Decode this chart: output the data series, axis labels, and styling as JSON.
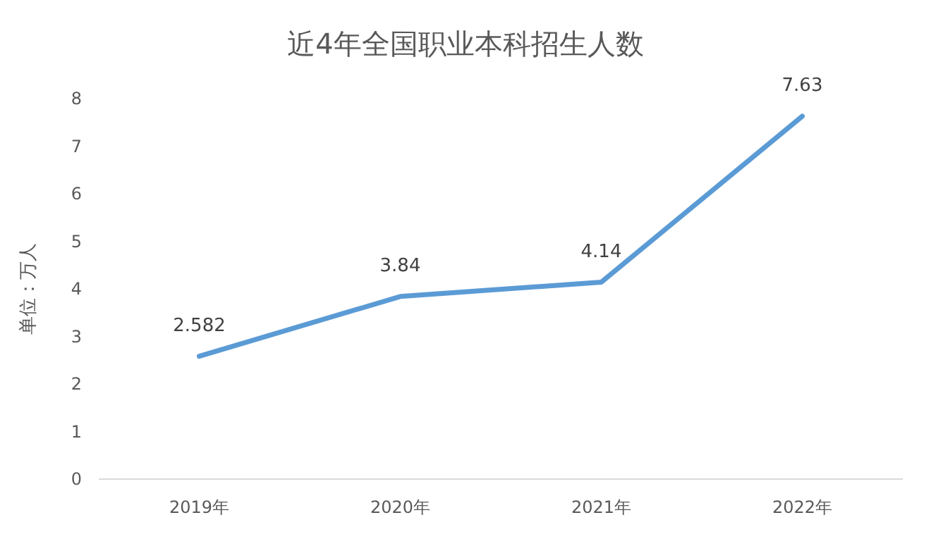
{
  "chart_data": {
    "type": "line",
    "title": "近4年全国职业本科招生人数",
    "ylabel": "单位：万人",
    "categories": [
      "2019年",
      "2020年",
      "2021年",
      "2022年"
    ],
    "series": [
      {
        "color": "#5b9bd5",
        "values": [
          2.582,
          3.84,
          4.14,
          7.63
        ]
      }
    ],
    "ylim": [
      0,
      8
    ],
    "yticks": [
      0,
      1,
      2,
      3,
      4,
      5,
      6,
      7,
      8
    ],
    "data_labels": true
  }
}
